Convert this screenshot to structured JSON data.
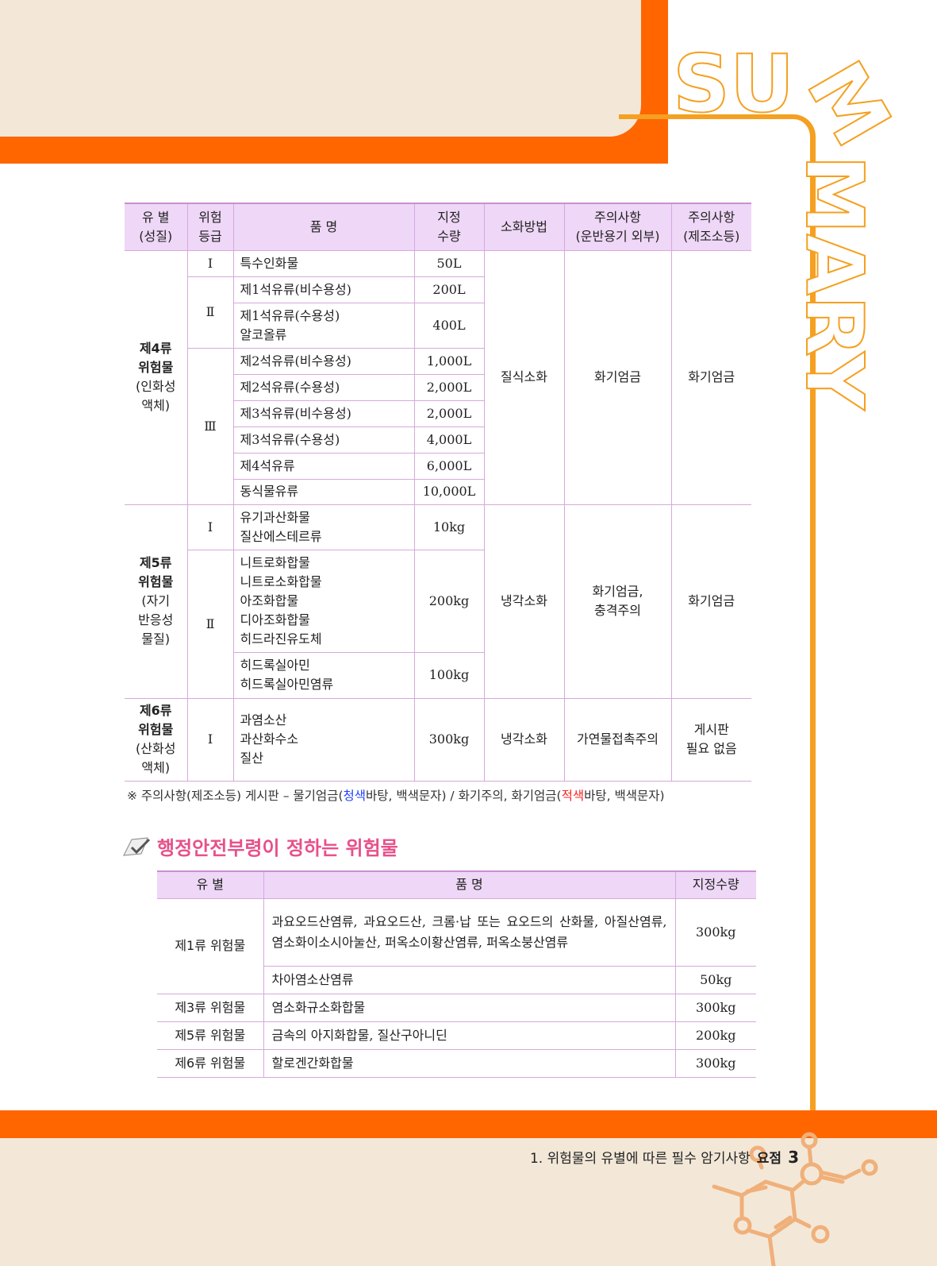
{
  "decor": {
    "summary_text": "SUMMARY",
    "accent": "#ff6600",
    "frame": "#f5a020",
    "header_bg": "#efd7f7"
  },
  "table1": {
    "headers": [
      "유 별\n(성질)",
      "위험\n등급",
      "품 명",
      "지정\n수량",
      "소화방법",
      "주의사항\n(운반용기 외부)",
      "주의사항\n(제조소등)"
    ],
    "groups": [
      {
        "type_bold": "제4류\n위험물",
        "type_note": "(인화성\n액체)",
        "extinguish": "질식소화",
        "caution_container": "화기엄금",
        "caution_facility": "화기엄금",
        "rows": [
          {
            "grade": "Ⅰ",
            "name": "특수인화물",
            "qty": "50L"
          },
          {
            "grade": "Ⅱ",
            "name": "제1석유류(비수용성)",
            "qty": "200L"
          },
          {
            "grade": "",
            "name": "제1석유류(수용성)\n알코올류",
            "qty": "400L"
          },
          {
            "grade": "Ⅲ",
            "name": "제2석유류(비수용성)",
            "qty": "1,000L"
          },
          {
            "grade": "",
            "name": "제2석유류(수용성)",
            "qty": "2,000L"
          },
          {
            "grade": "",
            "name": "제3석유류(비수용성)",
            "qty": "2,000L"
          },
          {
            "grade": "",
            "name": "제3석유류(수용성)",
            "qty": "4,000L"
          },
          {
            "grade": "",
            "name": "제4석유류",
            "qty": "6,000L"
          },
          {
            "grade": "",
            "name": "동식물유류",
            "qty": "10,000L"
          }
        ]
      },
      {
        "type_bold": "제5류\n위험물",
        "type_note": "(자기\n반응성\n물질)",
        "extinguish": "냉각소화",
        "caution_container": "화기엄금,\n충격주의",
        "caution_facility": "화기엄금",
        "rows": [
          {
            "grade": "Ⅰ",
            "name": "유기과산화물\n질산에스테르류",
            "qty": "10kg"
          },
          {
            "grade": "Ⅱ",
            "name": "니트로화합물\n니트로소화합물\n아조화합물\n디아조화합물\n히드라진유도체",
            "qty": "200kg"
          },
          {
            "grade": "",
            "name": "히드록실아민\n히드록실아민염류",
            "qty": "100kg"
          }
        ]
      },
      {
        "type_bold": "제6류\n위험물",
        "type_note": "(산화성\n액체)",
        "extinguish": "냉각소화",
        "caution_container": "가연물접촉주의",
        "caution_facility": "게시판\n필요 없음",
        "rows": [
          {
            "grade": "Ⅰ",
            "name": "과염소산\n과산화수소\n질산",
            "qty": "300kg"
          }
        ]
      }
    ],
    "note": {
      "p1": "※ 주의사항(제조소등) 게시판 – 물기엄금(",
      "blue": "청색",
      "p2": "바탕, 백색문자) / 화기주의, 화기엄금(",
      "red": "적색",
      "p3": "바탕, 백색문자)"
    }
  },
  "section2": {
    "title": "행정안전부령이 정하는 위험물",
    "headers": [
      "유 별",
      "품 명",
      "지정수량"
    ],
    "rows": [
      {
        "type": "제1류 위험물",
        "name": "과요오드산염류, 과요오드산, 크롬·납 또는 요오드의 산화물, 아질산염류, 염소화이소시아눌산, 퍼옥소이황산염류, 퍼옥소붕산염류",
        "qty": "300kg"
      },
      {
        "type": "",
        "name": "차아염소산염류",
        "qty": "50kg"
      },
      {
        "type": "제3류 위험물",
        "name": "염소화규소화합물",
        "qty": "300kg"
      },
      {
        "type": "제5류 위험물",
        "name": "금속의 아지화합물, 질산구아니딘",
        "qty": "200kg"
      },
      {
        "type": "제6류 위험물",
        "name": "할로겐간화합물",
        "qty": "300kg"
      }
    ]
  },
  "footer": {
    "chapter": "1. 위험물의 유별에 따른 필수 암기사항",
    "label": "요점",
    "page": "3"
  }
}
